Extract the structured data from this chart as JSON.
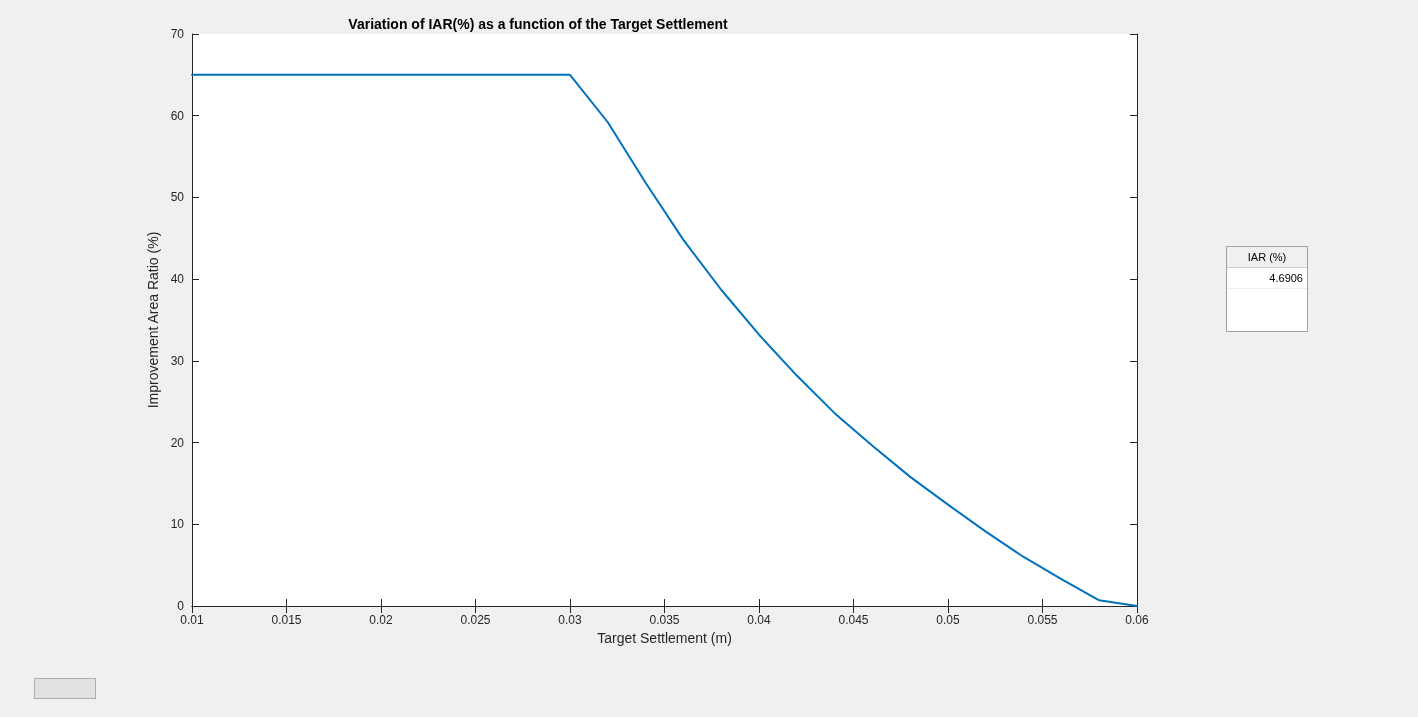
{
  "chart_data": {
    "type": "line",
    "title": "Variation of IAR(%) as a function of the Target Settlement",
    "xlabel": "Target Settlement (m)",
    "ylabel": "Improvement Area Ratio (%)",
    "x": [
      0.01,
      0.03,
      0.032,
      0.034,
      0.036,
      0.038,
      0.04,
      0.042,
      0.044,
      0.046,
      0.048,
      0.05,
      0.052,
      0.054,
      0.056,
      0.058,
      0.06
    ],
    "series": [
      {
        "color": "#0072bd",
        "values": [
          65,
          65,
          59.2,
          51.8,
          44.8,
          38.7,
          33.2,
          28.2,
          23.6,
          19.6,
          15.8,
          12.4,
          9.1,
          6.0,
          3.3,
          0.7,
          0
        ]
      }
    ],
    "xlim": [
      0.01,
      0.06
    ],
    "xticks": [
      0.01,
      0.015,
      0.02,
      0.025,
      0.03,
      0.035,
      0.04,
      0.045,
      0.05,
      0.055,
      0.06
    ],
    "ylim": [
      0,
      70
    ],
    "yticks": [
      0,
      10,
      20,
      30,
      40,
      50,
      60,
      70
    ],
    "grid": false,
    "marker": "none",
    "line_style": "solid",
    "annotations": [
      "IAR (%)",
      "4.6906"
    ]
  }
}
